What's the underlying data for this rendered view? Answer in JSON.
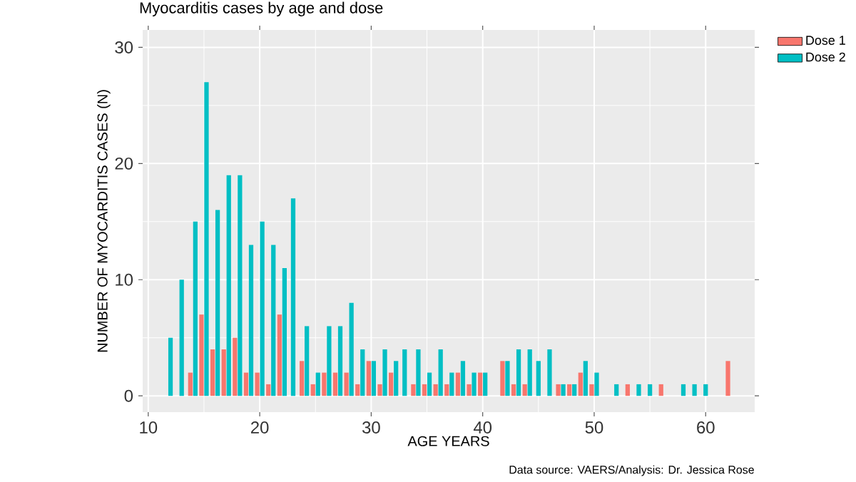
{
  "chart_data": {
    "type": "bar",
    "title": "Myocarditis cases by age and dose",
    "xlabel": "AGE YEARS",
    "ylabel": "NUMBER OF MYOCARDITIS CASES (N)",
    "annotations": [
      "Data source: VAERS/Analysis: Dr. Jessica Rose"
    ],
    "x": [
      12,
      13,
      14,
      15,
      16,
      17,
      18,
      19,
      20,
      21,
      22,
      23,
      24,
      25,
      26,
      27,
      28,
      29,
      30,
      31,
      32,
      33,
      34,
      35,
      36,
      37,
      38,
      39,
      40,
      42,
      43,
      44,
      45,
      46,
      47,
      48,
      49,
      50,
      52,
      53,
      54,
      55,
      56,
      58,
      59,
      60,
      62
    ],
    "series": [
      {
        "name": "Dose 1",
        "color": "#f8766d",
        "values": [
          null,
          null,
          2,
          7,
          4,
          4,
          5,
          2,
          2,
          1,
          7,
          null,
          3,
          1,
          2,
          2,
          2,
          1,
          3,
          1,
          2,
          null,
          1,
          1,
          1,
          1,
          2,
          1,
          2,
          3,
          1,
          1,
          null,
          null,
          1,
          1,
          2,
          1,
          null,
          1,
          null,
          null,
          1,
          null,
          null,
          null,
          3
        ]
      },
      {
        "name": "Dose 2",
        "color": "#00bfc4",
        "values": [
          5,
          10,
          15,
          27,
          16,
          19,
          19,
          13,
          15,
          13,
          11,
          17,
          6,
          2,
          6,
          6,
          8,
          4,
          3,
          4,
          3,
          4,
          4,
          2,
          4,
          2,
          3,
          2,
          2,
          3,
          4,
          4,
          3,
          4,
          1,
          1,
          3,
          2,
          1,
          null,
          1,
          1,
          null,
          1,
          1,
          1,
          null
        ]
      }
    ],
    "xlim": [
      9.5,
      64.4
    ],
    "ylim": [
      -1.4,
      31.5
    ],
    "xticks": [
      10,
      20,
      30,
      40,
      50,
      60
    ],
    "yticks": [
      0,
      10,
      20,
      30
    ],
    "grid": true,
    "legend": "top right"
  }
}
